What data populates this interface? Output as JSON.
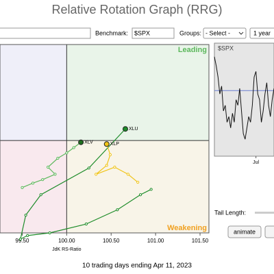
{
  "header": {
    "title": "Relative Rotation Graph (RRG)"
  },
  "toolbar": {
    "benchmark_label": "Benchmark:",
    "benchmark_value": "$SPX",
    "groups_label": "Groups:",
    "groups_value": "- Select -",
    "period_value": "1 year"
  },
  "chart_data": {
    "type": "scatter",
    "quadrant_labels": {
      "top_right": "Leading",
      "bottom_right": "Weakening"
    },
    "x_label": "JdK RS-Ratio",
    "xlim": [
      99.25,
      101.6
    ],
    "ylim": [
      98.96,
      101.08
    ],
    "xticks": [
      {
        "value": 99.5,
        "label": "99.50"
      },
      {
        "value": 100,
        "label": "100.00"
      },
      {
        "value": 100.5,
        "label": "100.50"
      },
      {
        "value": 101,
        "label": "101.00"
      },
      {
        "value": 101.5,
        "label": "101.50"
      }
    ],
    "center": [
      100,
      100
    ],
    "series": [
      {
        "name": "XLV",
        "color": "#5cb85c",
        "head_color": "#1e6e1e",
        "x": [
          99.5,
          99.62,
          99.73,
          99.87,
          99.79,
          99.9,
          100.0,
          100.08,
          100.16
        ],
        "values": [
          99.47,
          99.52,
          99.56,
          99.62,
          99.7,
          99.8,
          99.86,
          99.92,
          99.98
        ]
      },
      {
        "name": "XLU",
        "color": "#1e8c2a",
        "head_color": "#1e8c2a",
        "x": [
          100.95,
          100.83,
          100.57,
          100.22,
          99.81,
          99.56,
          99.48,
          99.54,
          99.71,
          100.25,
          100.66
        ],
        "values": [
          99.45,
          99.39,
          99.22,
          99.06,
          98.96,
          98.93,
          98.89,
          99.16,
          99.39,
          99.69,
          100.13
        ]
      },
      {
        "name": "XLP",
        "color": "#f0c419",
        "head_color": "#f0c419",
        "x": [
          100.8,
          100.69,
          100.54,
          100.33,
          100.45,
          100.49,
          100.45
        ],
        "values": [
          99.53,
          99.62,
          99.7,
          99.62,
          99.72,
          99.84,
          99.96
        ]
      }
    ]
  },
  "mini_chart": {
    "type": "line",
    "title": "$SPX",
    "ylim": [
      0,
      100
    ],
    "xlim": [
      0,
      33
    ],
    "reference_value": 58,
    "xticks": [
      {
        "value": 23,
        "label": "Jul"
      }
    ],
    "values": [
      88,
      80,
      70,
      55,
      62,
      40,
      45,
      30,
      35,
      25,
      38,
      30,
      50,
      45,
      60,
      40,
      20,
      15,
      25,
      35,
      30,
      45,
      70,
      75,
      55,
      50,
      30,
      40,
      55,
      65,
      45,
      35,
      50,
      60
    ]
  },
  "side": {
    "tail_label": "Tail Length:",
    "animate_button": "animate"
  },
  "footer": "10 trading days ending Apr 11, 2023"
}
